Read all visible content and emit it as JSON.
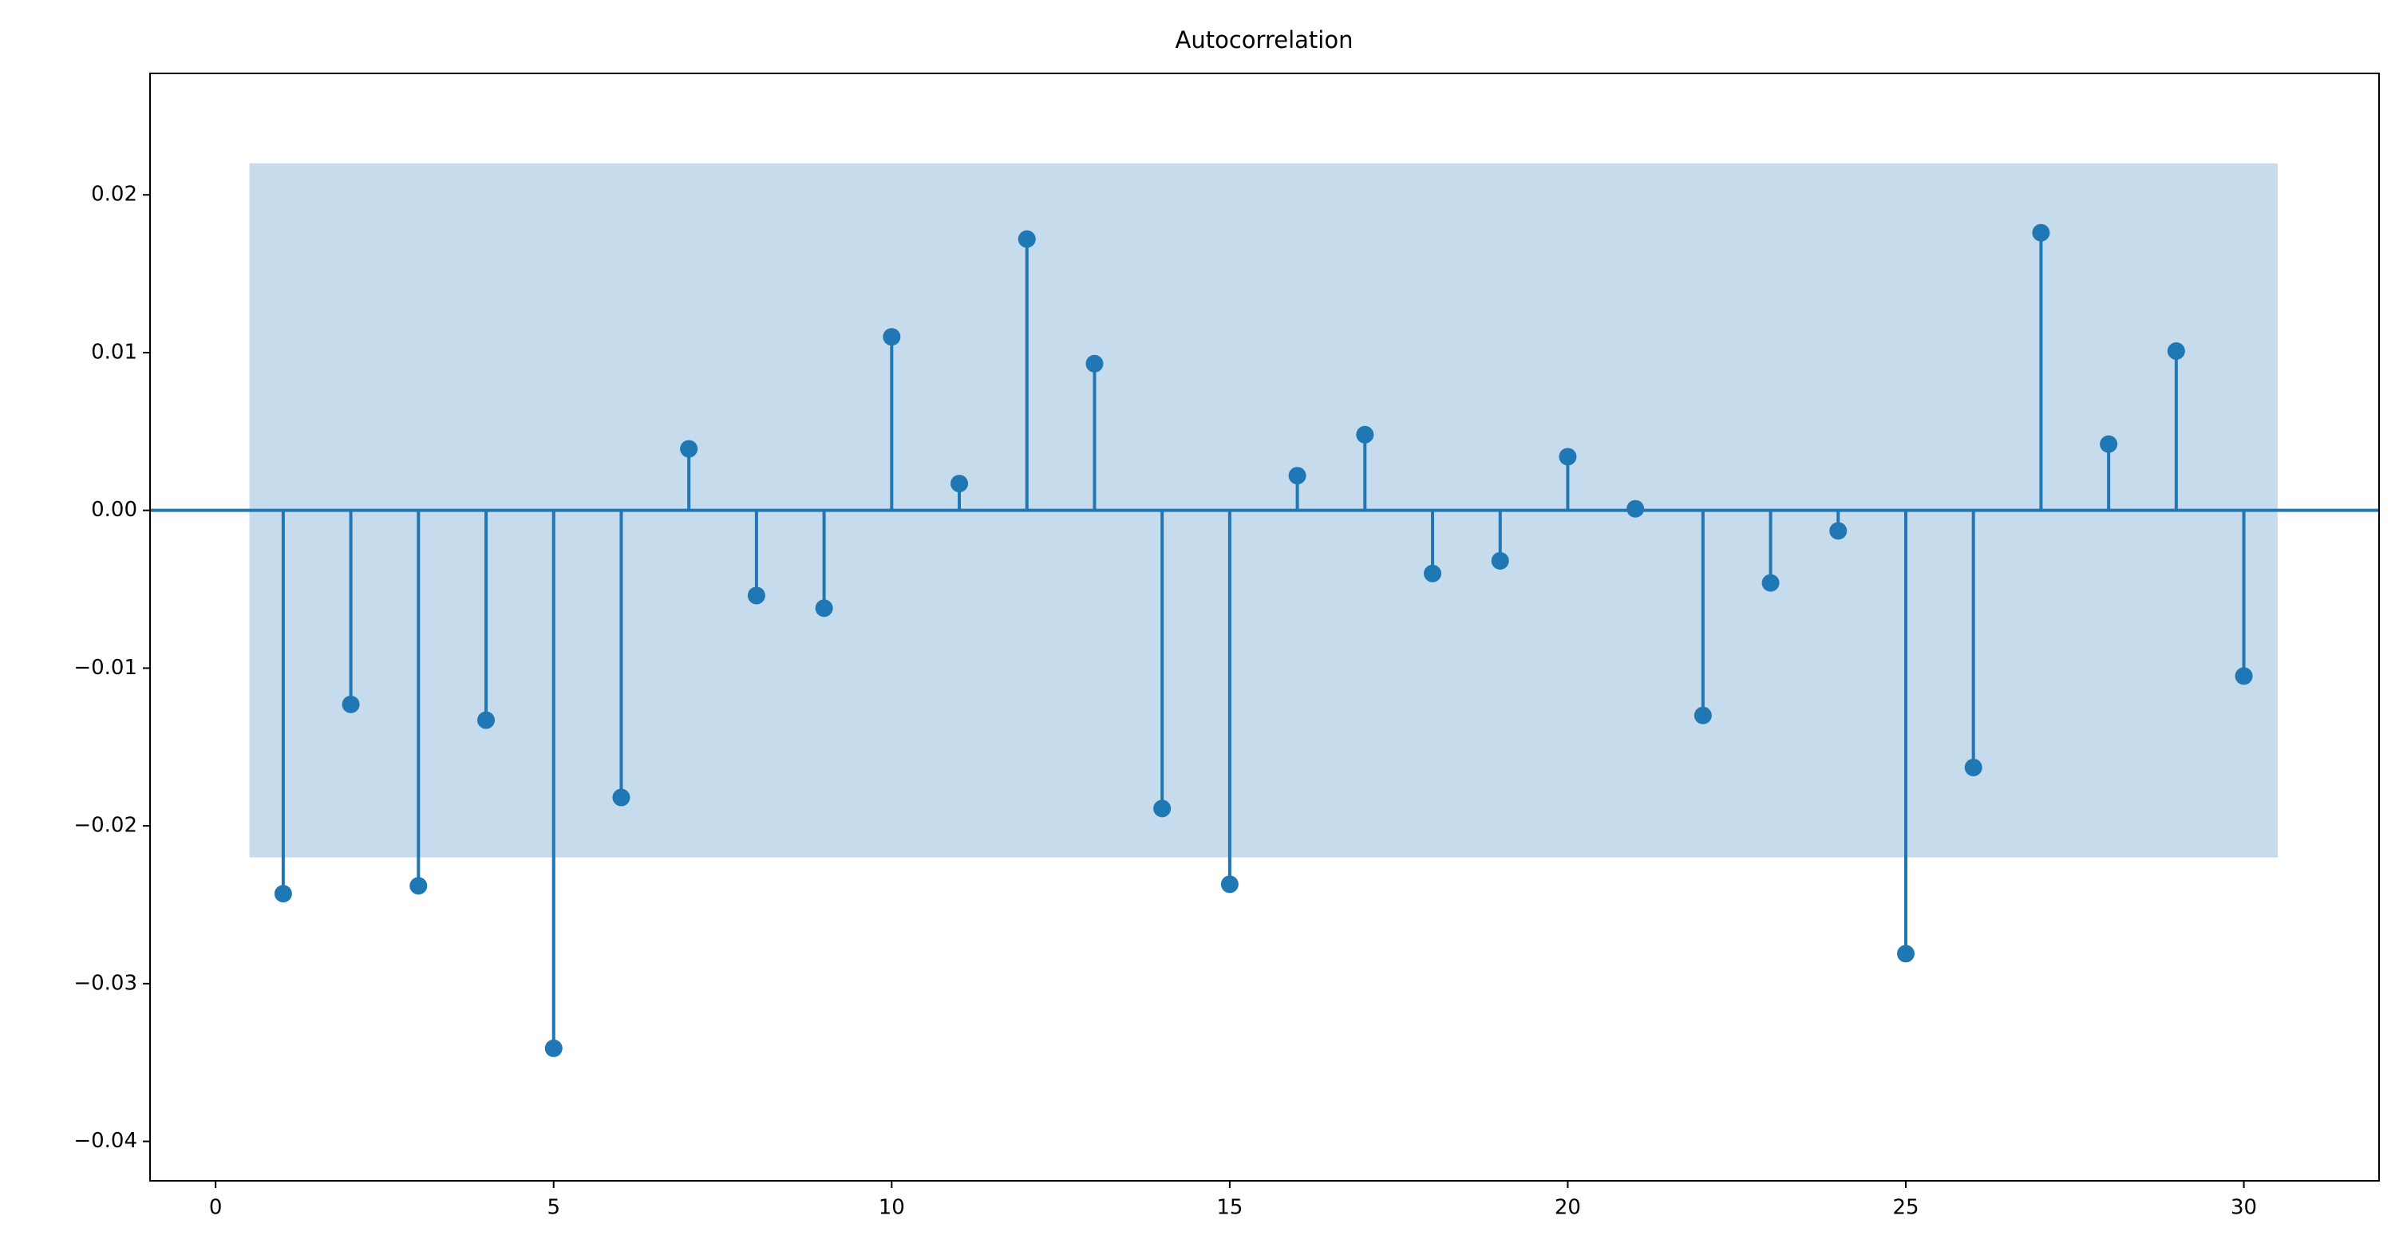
{
  "chart_data": {
    "type": "stem",
    "title": "Autocorrelation",
    "x": [
      1,
      2,
      3,
      4,
      5,
      6,
      7,
      8,
      9,
      10,
      11,
      12,
      13,
      14,
      15,
      16,
      17,
      18,
      19,
      20,
      21,
      22,
      23,
      24,
      25,
      26,
      27,
      28,
      29,
      30
    ],
    "values": [
      -0.0243,
      -0.0123,
      -0.0238,
      -0.0133,
      -0.0341,
      -0.0182,
      0.0039,
      -0.0054,
      -0.0062,
      0.011,
      0.0017,
      0.0172,
      0.0093,
      -0.0189,
      -0.0237,
      0.0022,
      0.0048,
      -0.004,
      -0.0032,
      0.0034,
      0.0001,
      -0.013,
      -0.0046,
      -0.0013,
      -0.0281,
      -0.0163,
      0.0176,
      0.0042,
      0.0101,
      -0.0105
    ],
    "color": "#1f77b4",
    "confidence_band": {
      "x": [
        0.5,
        30.5
      ],
      "lower": -0.022,
      "upper": 0.022,
      "color": "#c6dbec"
    },
    "xlim": [
      -0.97,
      32.0
    ],
    "ylim": [
      -0.0425,
      0.0277
    ],
    "xticks": [
      0,
      5,
      10,
      15,
      20,
      25,
      30
    ],
    "yticks": [
      {
        "value": -0.04,
        "label": "−0.04"
      },
      {
        "value": -0.03,
        "label": "−0.03"
      },
      {
        "value": -0.02,
        "label": "−0.02"
      },
      {
        "value": -0.01,
        "label": "−0.01"
      },
      {
        "value": 0,
        "label": "0.00"
      },
      {
        "value": 0.01,
        "label": "0.01"
      },
      {
        "value": 0.02,
        "label": "0.02"
      }
    ],
    "grid": false
  }
}
